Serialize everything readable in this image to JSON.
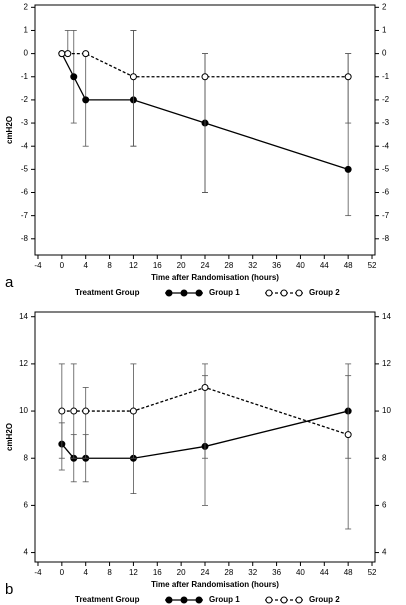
{
  "chart_data": [
    {
      "type": "line",
      "panel_label": "a",
      "xlabel": "Time after Randomisation (hours)",
      "ylabel": "cmH2O",
      "legend_title": "Treatment Group",
      "xlim": [
        -4.5,
        52.5
      ],
      "xticks": [
        -4,
        0,
        4,
        8,
        12,
        16,
        20,
        24,
        28,
        32,
        36,
        40,
        44,
        48,
        52
      ],
      "ylim": [
        -8.7,
        2.1
      ],
      "yticks": [
        -8,
        -7,
        -6,
        -5,
        -4,
        -3,
        -2,
        -1,
        0,
        1,
        2
      ],
      "series": [
        {
          "name": "Group 1",
          "color": "#000000",
          "dashed": false,
          "marker": "filled",
          "x": [
            0,
            2,
            4,
            12,
            24,
            48
          ],
          "values": [
            0,
            -1,
            -2,
            -2,
            -3,
            -5
          ],
          "lower": [
            null,
            -3,
            -4,
            -4,
            -6,
            -7
          ],
          "upper": [
            null,
            1,
            0,
            1,
            0,
            0
          ]
        },
        {
          "name": "Group 2",
          "color": "#000000",
          "dashed": true,
          "marker": "open",
          "x": [
            0,
            1,
            4,
            12,
            24,
            48
          ],
          "values": [
            0,
            0,
            0,
            -1,
            -1,
            -1
          ],
          "lower": [
            null,
            null,
            null,
            -4,
            -6,
            -3
          ],
          "upper": [
            null,
            1,
            null,
            1,
            0,
            0
          ]
        }
      ]
    },
    {
      "type": "line",
      "panel_label": "b",
      "xlabel": "Time after Randomisation (hours)",
      "ylabel": "cmH2O",
      "legend_title": "Treatment Group",
      "xlim": [
        -4.5,
        52.5
      ],
      "xticks": [
        -4,
        0,
        4,
        8,
        12,
        16,
        20,
        24,
        28,
        32,
        36,
        40,
        44,
        48,
        52
      ],
      "ylim": [
        3.6,
        14.2
      ],
      "yticks": [
        4,
        6,
        8,
        10,
        12,
        14
      ],
      "series": [
        {
          "name": "Group 1",
          "color": "#000000",
          "dashed": false,
          "marker": "filled",
          "x": [
            0,
            2,
            4,
            12,
            24,
            48
          ],
          "values": [
            8.6,
            8,
            8,
            8,
            8.5,
            10
          ],
          "lower": [
            7.5,
            7,
            7,
            6.5,
            6,
            5
          ],
          "upper": [
            9.5,
            9,
            9,
            10,
            11.5,
            11.5
          ]
        },
        {
          "name": "Group 2",
          "color": "#000000",
          "dashed": true,
          "marker": "open",
          "x": [
            0,
            2,
            4,
            12,
            24,
            48
          ],
          "values": [
            10,
            10,
            10,
            10,
            11,
            9
          ],
          "lower": [
            8,
            8,
            8,
            8,
            8,
            8
          ],
          "upper": [
            12,
            12,
            11,
            12,
            12,
            12
          ]
        }
      ]
    }
  ]
}
